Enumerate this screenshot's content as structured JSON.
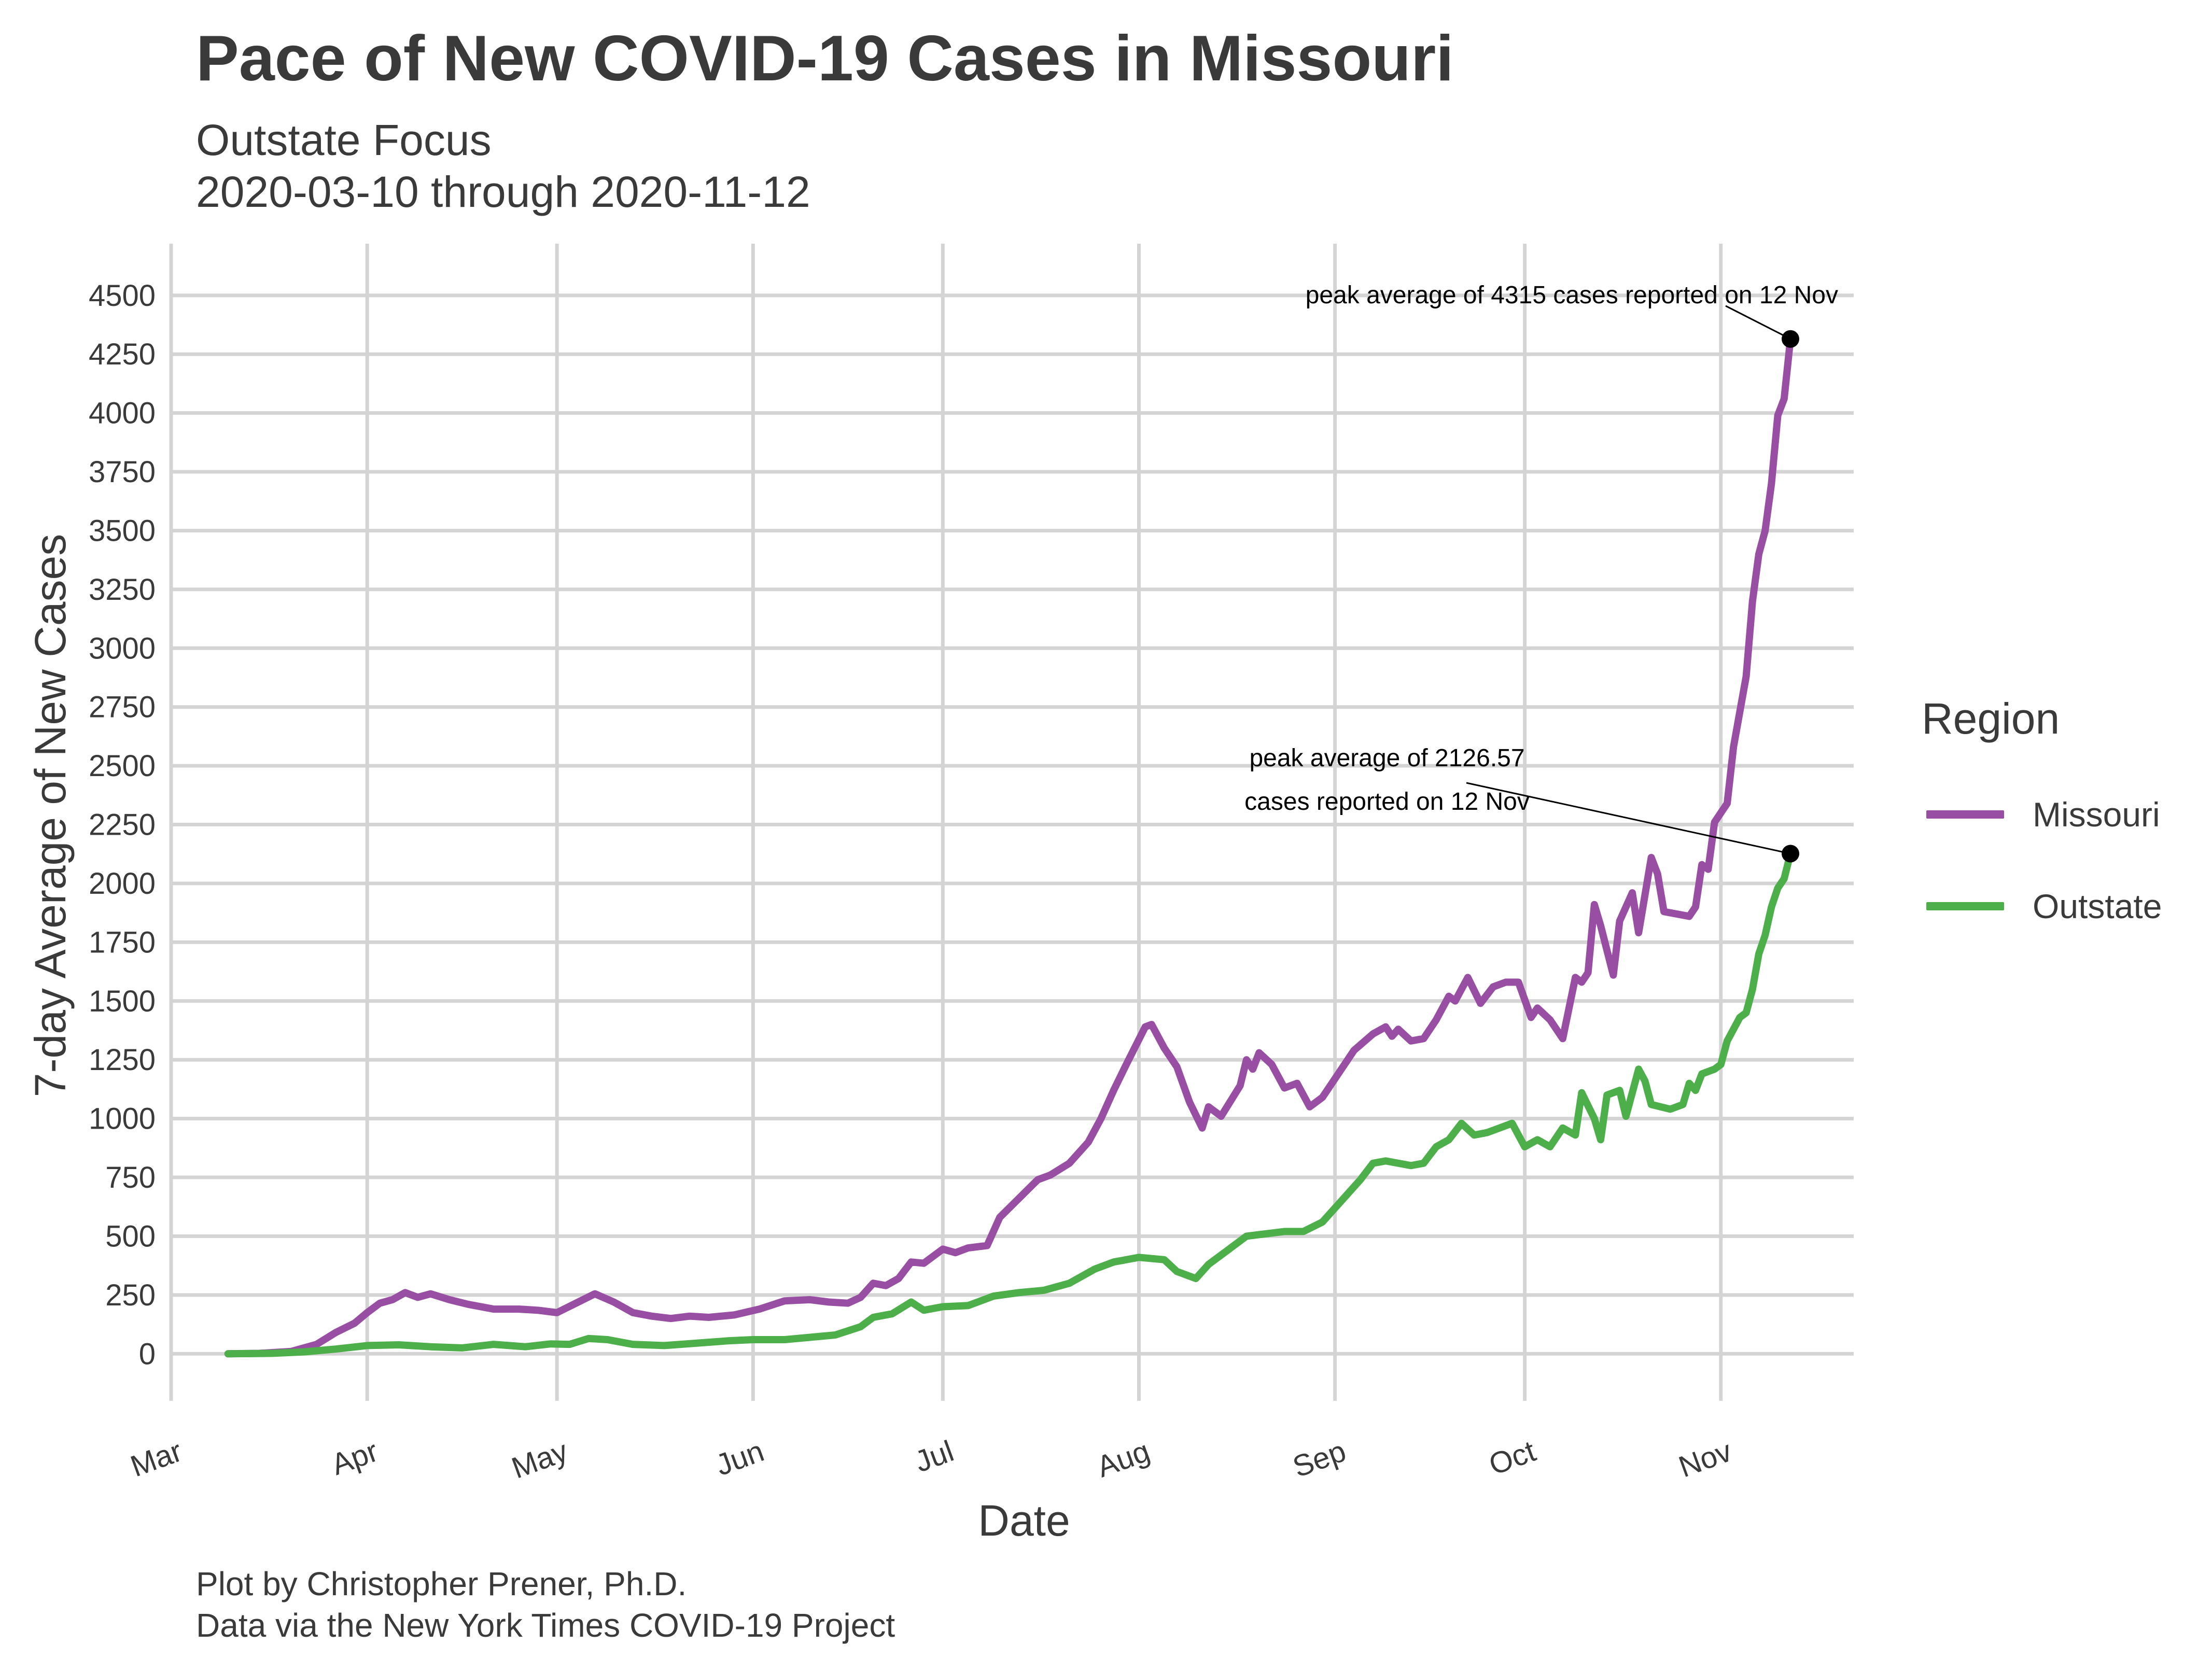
{
  "title": "Pace of New COVID-19 Cases in Missouri",
  "subtitle": "Outstate Focus",
  "date_range": "2020-03-10 through 2020-11-12",
  "caption_line1": "Plot by Christopher Prener, Ph.D.",
  "caption_line2": "Data via the New York Times COVID-19 Project",
  "legend": {
    "title": "Region",
    "items": [
      {
        "label": "Missouri",
        "color": "#984ea3"
      },
      {
        "label": "Outstate",
        "color": "#4daf4a"
      }
    ]
  },
  "chart_data": {
    "type": "line",
    "title": "Pace of New COVID-19 Cases in Missouri",
    "subtitle": "Outstate Focus",
    "xlabel": "Date",
    "ylabel": "7-day Average of New Cases",
    "xlim": [
      "2020-03-01",
      "2020-11-22"
    ],
    "ylim": [
      -200,
      4720
    ],
    "x_ticks": [
      {
        "label": "Mar",
        "date": "2020-03-01"
      },
      {
        "label": "Apr",
        "date": "2020-04-01"
      },
      {
        "label": "May",
        "date": "2020-05-01"
      },
      {
        "label": "Jun",
        "date": "2020-06-01"
      },
      {
        "label": "Jul",
        "date": "2020-07-01"
      },
      {
        "label": "Aug",
        "date": "2020-08-01"
      },
      {
        "label": "Sep",
        "date": "2020-09-01"
      },
      {
        "label": "Oct",
        "date": "2020-10-01"
      },
      {
        "label": "Nov",
        "date": "2020-11-01"
      }
    ],
    "y_ticks": [
      0,
      250,
      500,
      750,
      1000,
      1250,
      1500,
      1750,
      2000,
      2250,
      2500,
      2750,
      3000,
      3250,
      3500,
      3750,
      4000,
      4250,
      4500
    ],
    "grid": true,
    "legend_position": "right",
    "series": [
      {
        "name": "Missouri",
        "color": "#984ea3",
        "points": [
          [
            "2020-03-10",
            0
          ],
          [
            "2020-03-15",
            2
          ],
          [
            "2020-03-20",
            10
          ],
          [
            "2020-03-24",
            40
          ],
          [
            "2020-03-27",
            90
          ],
          [
            "2020-03-30",
            130
          ],
          [
            "2020-04-01",
            175
          ],
          [
            "2020-04-03",
            215
          ],
          [
            "2020-04-05",
            230
          ],
          [
            "2020-04-07",
            260
          ],
          [
            "2020-04-09",
            240
          ],
          [
            "2020-04-11",
            255
          ],
          [
            "2020-04-14",
            230
          ],
          [
            "2020-04-17",
            210
          ],
          [
            "2020-04-21",
            190
          ],
          [
            "2020-04-25",
            190
          ],
          [
            "2020-04-28",
            185
          ],
          [
            "2020-05-01",
            175
          ],
          [
            "2020-05-04",
            215
          ],
          [
            "2020-05-07",
            255
          ],
          [
            "2020-05-10",
            220
          ],
          [
            "2020-05-13",
            175
          ],
          [
            "2020-05-16",
            160
          ],
          [
            "2020-05-19",
            150
          ],
          [
            "2020-05-22",
            160
          ],
          [
            "2020-05-25",
            155
          ],
          [
            "2020-05-29",
            165
          ],
          [
            "2020-06-02",
            190
          ],
          [
            "2020-06-06",
            225
          ],
          [
            "2020-06-10",
            230
          ],
          [
            "2020-06-13",
            220
          ],
          [
            "2020-06-16",
            215
          ],
          [
            "2020-06-18",
            240
          ],
          [
            "2020-06-20",
            300
          ],
          [
            "2020-06-22",
            290
          ],
          [
            "2020-06-24",
            320
          ],
          [
            "2020-06-26",
            390
          ],
          [
            "2020-06-28",
            385
          ],
          [
            "2020-07-01",
            445
          ],
          [
            "2020-07-03",
            430
          ],
          [
            "2020-07-05",
            450
          ],
          [
            "2020-07-08",
            460
          ],
          [
            "2020-07-10",
            580
          ],
          [
            "2020-07-13",
            660
          ],
          [
            "2020-07-16",
            740
          ],
          [
            "2020-07-18",
            760
          ],
          [
            "2020-07-21",
            810
          ],
          [
            "2020-07-24",
            900
          ],
          [
            "2020-07-26",
            1000
          ],
          [
            "2020-07-28",
            1120
          ],
          [
            "2020-07-30",
            1230
          ],
          [
            "2020-08-02",
            1390
          ],
          [
            "2020-08-03",
            1400
          ],
          [
            "2020-08-05",
            1300
          ],
          [
            "2020-08-07",
            1220
          ],
          [
            "2020-08-09",
            1070
          ],
          [
            "2020-08-11",
            960
          ],
          [
            "2020-08-12",
            1050
          ],
          [
            "2020-08-14",
            1010
          ],
          [
            "2020-08-17",
            1140
          ],
          [
            "2020-08-18",
            1250
          ],
          [
            "2020-08-19",
            1210
          ],
          [
            "2020-08-20",
            1280
          ],
          [
            "2020-08-22",
            1230
          ],
          [
            "2020-08-24",
            1130
          ],
          [
            "2020-08-26",
            1150
          ],
          [
            "2020-08-28",
            1050
          ],
          [
            "2020-08-30",
            1090
          ],
          [
            "2020-09-01",
            1170
          ],
          [
            "2020-09-04",
            1290
          ],
          [
            "2020-09-07",
            1360
          ],
          [
            "2020-09-09",
            1390
          ],
          [
            "2020-09-10",
            1350
          ],
          [
            "2020-09-11",
            1380
          ],
          [
            "2020-09-13",
            1330
          ],
          [
            "2020-09-15",
            1340
          ],
          [
            "2020-09-17",
            1420
          ],
          [
            "2020-09-19",
            1520
          ],
          [
            "2020-09-20",
            1500
          ],
          [
            "2020-09-22",
            1600
          ],
          [
            "2020-09-24",
            1490
          ],
          [
            "2020-09-26",
            1560
          ],
          [
            "2020-09-28",
            1580
          ],
          [
            "2020-09-30",
            1580
          ],
          [
            "2020-10-02",
            1430
          ],
          [
            "2020-10-03",
            1470
          ],
          [
            "2020-10-05",
            1420
          ],
          [
            "2020-10-07",
            1340
          ],
          [
            "2020-10-09",
            1600
          ],
          [
            "2020-10-10",
            1580
          ],
          [
            "2020-10-11",
            1620
          ],
          [
            "2020-10-12",
            1910
          ],
          [
            "2020-10-13",
            1820
          ],
          [
            "2020-10-15",
            1610
          ],
          [
            "2020-10-16",
            1840
          ],
          [
            "2020-10-18",
            1960
          ],
          [
            "2020-10-19",
            1790
          ],
          [
            "2020-10-21",
            2110
          ],
          [
            "2020-10-22",
            2040
          ],
          [
            "2020-10-23",
            1880
          ],
          [
            "2020-10-27",
            1860
          ],
          [
            "2020-10-28",
            1900
          ],
          [
            "2020-10-29",
            2080
          ],
          [
            "2020-10-30",
            2060
          ],
          [
            "2020-10-31",
            2260
          ],
          [
            "2020-11-02",
            2340
          ],
          [
            "2020-11-03",
            2580
          ],
          [
            "2020-11-05",
            2880
          ],
          [
            "2020-11-06",
            3200
          ],
          [
            "2020-11-07",
            3400
          ],
          [
            "2020-11-08",
            3500
          ],
          [
            "2020-11-09",
            3700
          ],
          [
            "2020-11-10",
            3990
          ],
          [
            "2020-11-11",
            4060
          ],
          [
            "2020-11-12",
            4315
          ]
        ]
      },
      {
        "name": "Outstate",
        "color": "#4daf4a",
        "points": [
          [
            "2020-03-10",
            0
          ],
          [
            "2020-03-17",
            2
          ],
          [
            "2020-03-22",
            8
          ],
          [
            "2020-03-27",
            20
          ],
          [
            "2020-04-01",
            35
          ],
          [
            "2020-04-06",
            38
          ],
          [
            "2020-04-11",
            30
          ],
          [
            "2020-04-16",
            25
          ],
          [
            "2020-04-21",
            40
          ],
          [
            "2020-04-26",
            30
          ],
          [
            "2020-04-30",
            42
          ],
          [
            "2020-05-03",
            40
          ],
          [
            "2020-05-06",
            65
          ],
          [
            "2020-05-09",
            60
          ],
          [
            "2020-05-13",
            40
          ],
          [
            "2020-05-18",
            35
          ],
          [
            "2020-05-23",
            45
          ],
          [
            "2020-05-28",
            55
          ],
          [
            "2020-06-01",
            60
          ],
          [
            "2020-06-06",
            60
          ],
          [
            "2020-06-10",
            70
          ],
          [
            "2020-06-14",
            80
          ],
          [
            "2020-06-18",
            115
          ],
          [
            "2020-06-20",
            155
          ],
          [
            "2020-06-23",
            170
          ],
          [
            "2020-06-26",
            220
          ],
          [
            "2020-06-28",
            185
          ],
          [
            "2020-07-01",
            200
          ],
          [
            "2020-07-05",
            205
          ],
          [
            "2020-07-09",
            245
          ],
          [
            "2020-07-13",
            260
          ],
          [
            "2020-07-17",
            270
          ],
          [
            "2020-07-21",
            300
          ],
          [
            "2020-07-25",
            360
          ],
          [
            "2020-07-28",
            390
          ],
          [
            "2020-08-01",
            410
          ],
          [
            "2020-08-05",
            400
          ],
          [
            "2020-08-07",
            350
          ],
          [
            "2020-08-10",
            320
          ],
          [
            "2020-08-12",
            380
          ],
          [
            "2020-08-15",
            440
          ],
          [
            "2020-08-18",
            500
          ],
          [
            "2020-08-21",
            510
          ],
          [
            "2020-08-24",
            520
          ],
          [
            "2020-08-27",
            520
          ],
          [
            "2020-08-30",
            560
          ],
          [
            "2020-09-02",
            650
          ],
          [
            "2020-09-05",
            740
          ],
          [
            "2020-09-07",
            810
          ],
          [
            "2020-09-09",
            820
          ],
          [
            "2020-09-11",
            810
          ],
          [
            "2020-09-13",
            800
          ],
          [
            "2020-09-15",
            810
          ],
          [
            "2020-09-17",
            880
          ],
          [
            "2020-09-19",
            910
          ],
          [
            "2020-09-21",
            980
          ],
          [
            "2020-09-23",
            930
          ],
          [
            "2020-09-25",
            940
          ],
          [
            "2020-09-27",
            960
          ],
          [
            "2020-09-29",
            980
          ],
          [
            "2020-10-01",
            880
          ],
          [
            "2020-10-03",
            910
          ],
          [
            "2020-10-05",
            880
          ],
          [
            "2020-10-07",
            960
          ],
          [
            "2020-10-09",
            930
          ],
          [
            "2020-10-10",
            1110
          ],
          [
            "2020-10-12",
            1000
          ],
          [
            "2020-10-13",
            910
          ],
          [
            "2020-10-14",
            1100
          ],
          [
            "2020-10-16",
            1120
          ],
          [
            "2020-10-17",
            1010
          ],
          [
            "2020-10-19",
            1210
          ],
          [
            "2020-10-20",
            1160
          ],
          [
            "2020-10-21",
            1060
          ],
          [
            "2020-10-24",
            1040
          ],
          [
            "2020-10-26",
            1060
          ],
          [
            "2020-10-27",
            1150
          ],
          [
            "2020-10-28",
            1120
          ],
          [
            "2020-10-29",
            1190
          ],
          [
            "2020-10-31",
            1210
          ],
          [
            "2020-11-01",
            1230
          ],
          [
            "2020-11-02",
            1330
          ],
          [
            "2020-11-04",
            1430
          ],
          [
            "2020-11-05",
            1450
          ],
          [
            "2020-11-06",
            1550
          ],
          [
            "2020-11-07",
            1700
          ],
          [
            "2020-11-08",
            1780
          ],
          [
            "2020-11-09",
            1900
          ],
          [
            "2020-11-10",
            1980
          ],
          [
            "2020-11-11",
            2020
          ],
          [
            "2020-11-12",
            2126.57
          ]
        ]
      }
    ],
    "annotations": [
      {
        "series": "Missouri",
        "date": "2020-11-12",
        "value": 4315,
        "lines": [
          "peak average of 4315 cases reported on 12 Nov"
        ]
      },
      {
        "series": "Outstate",
        "date": "2020-11-12",
        "value": 2126.57,
        "lines": [
          "peak average of 2126.57",
          "cases reported on 12 Nov"
        ]
      }
    ]
  }
}
